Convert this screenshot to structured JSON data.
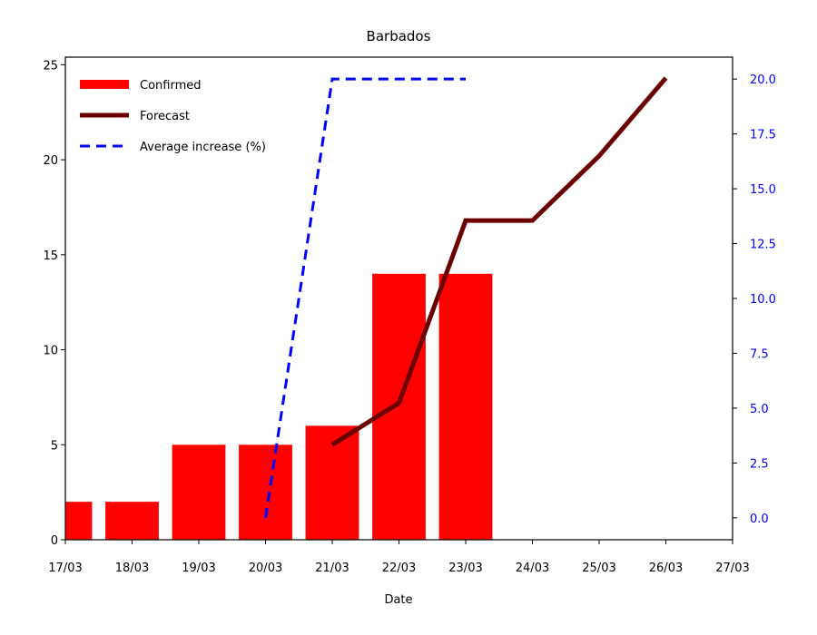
{
  "chart_data": {
    "type": "bar",
    "title": "Barbados",
    "xlabel": "Date",
    "ylabel": "",
    "x_ticks": [
      "17/03",
      "18/03",
      "19/03",
      "20/03",
      "21/03",
      "22/03",
      "23/03",
      "24/03",
      "25/03",
      "26/03",
      "27/03"
    ],
    "ylim": [
      0,
      25.4
    ],
    "y_ticks": [
      "0",
      "5",
      "10",
      "15",
      "20",
      "25"
    ],
    "y2lim": [
      -1,
      21
    ],
    "y2_ticks": [
      "0.0",
      "2.5",
      "5.0",
      "7.5",
      "10.0",
      "12.5",
      "15.0",
      "17.5",
      "20.0"
    ],
    "legend_position": "top-left",
    "series": [
      {
        "name": "Confirmed",
        "type": "bar",
        "axis": "left",
        "color": "#ff0000",
        "x": [
          "17/03",
          "18/03",
          "19/03",
          "20/03",
          "21/03",
          "22/03",
          "23/03"
        ],
        "values": [
          2,
          2,
          5,
          5,
          6,
          14,
          14
        ]
      },
      {
        "name": "Forecast",
        "type": "line",
        "axis": "left",
        "color": "#6b0000",
        "x": [
          "21/03",
          "22/03",
          "23/03",
          "24/03",
          "25/03",
          "26/03"
        ],
        "values": [
          5.0,
          7.2,
          16.8,
          16.8,
          20.2,
          24.3
        ]
      },
      {
        "name": "Average increase (%)",
        "type": "line",
        "style": "dashed",
        "axis": "right",
        "color": "#0000ff",
        "x": [
          "20/03",
          "21/03",
          "22/03",
          "23/03"
        ],
        "values": [
          0.0,
          20.0,
          20.0,
          20.0
        ]
      }
    ]
  }
}
